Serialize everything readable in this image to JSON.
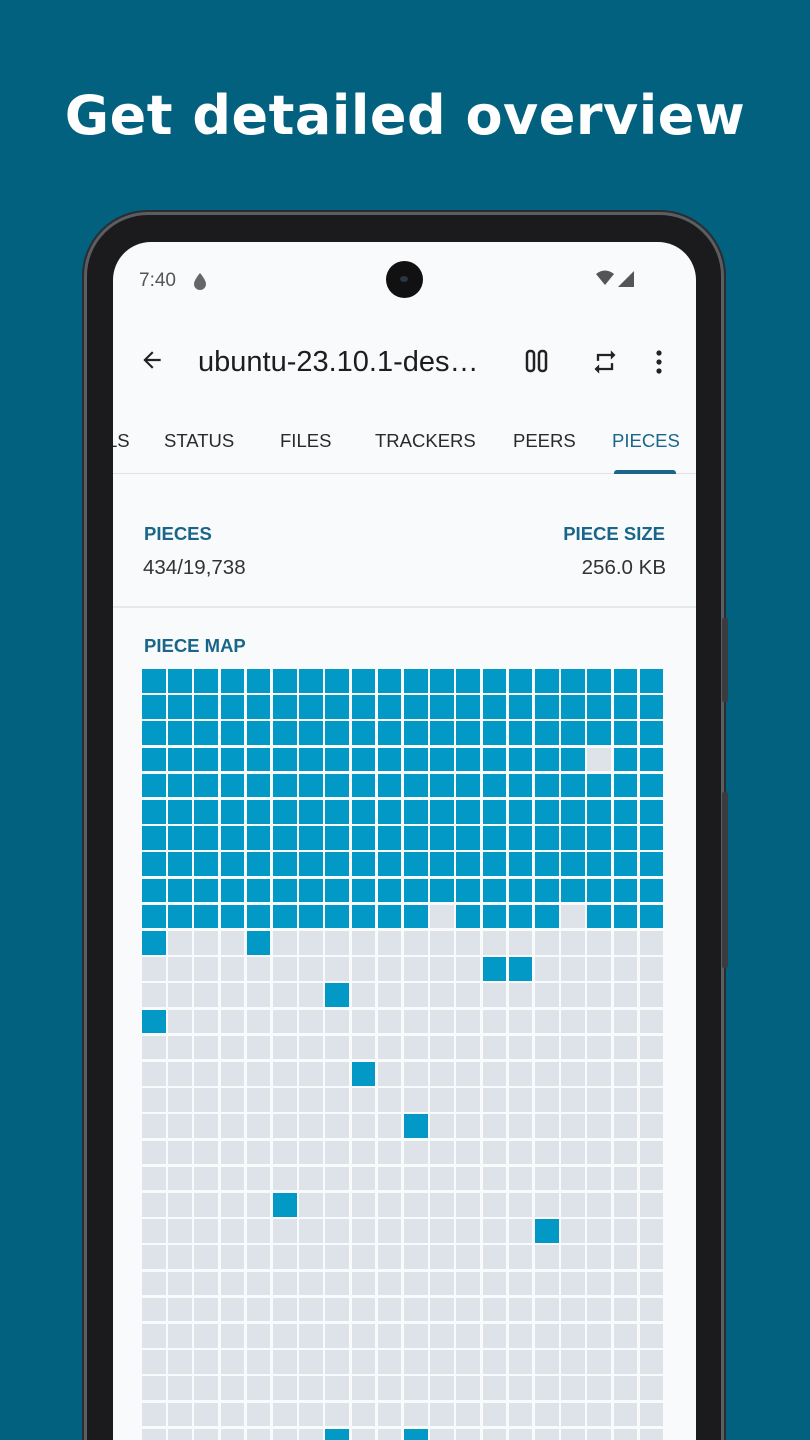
{
  "headline": "Get detailed overview",
  "status_bar": {
    "time": "7:40",
    "icons": [
      "drop-icon",
      "wifi-icon",
      "signal-icon"
    ]
  },
  "toolbar": {
    "title": "ubuntu-23.10.1-des…",
    "icons": [
      "back-arrow-icon",
      "pause-icon",
      "repeat-icon",
      "more-vert-icon"
    ]
  },
  "tabs": [
    {
      "label": "LS"
    },
    {
      "label": "STATUS"
    },
    {
      "label": "FILES"
    },
    {
      "label": "TRACKERS"
    },
    {
      "label": "PEERS"
    },
    {
      "label": "PIECES",
      "active": true
    }
  ],
  "pieces": {
    "label": "PIECES",
    "value": "434/19,738"
  },
  "piece_size": {
    "label": "PIECE SIZE",
    "value": "256.0 KB"
  },
  "piece_map": {
    "label": "PIECE MAP",
    "colors": {
      "have": "#0399c6",
      "missing": "#dde3e9",
      "accent": "#1a6688",
      "background": "#02617f"
    },
    "columns": 20,
    "rows": [
      "11111111111111111111",
      "11111111111111111111",
      "11111111111111111111",
      "11111111111111111011",
      "11111111111111111111",
      "11111111111111111111",
      "11111111111111111111",
      "11111111111111111111",
      "11111111111111111111",
      "11111111111011110111",
      "10001000000000000000",
      "00000000000001100000",
      "00000001000000000000",
      "10000000000000000000",
      "00000000000000000000",
      "00000000100000000000",
      "00000000000000000000",
      "00000000001000000000",
      "00000000000000000000",
      "00000000000000000000",
      "00000100000000000000",
      "00000000000000010000",
      "00000000000000000000",
      "00000000000000000000",
      "00000000000000000000",
      "00000000000000000000",
      "00000000000000000000",
      "00000000000000000000",
      "00000000000000000000",
      "00000001001000000000"
    ]
  }
}
